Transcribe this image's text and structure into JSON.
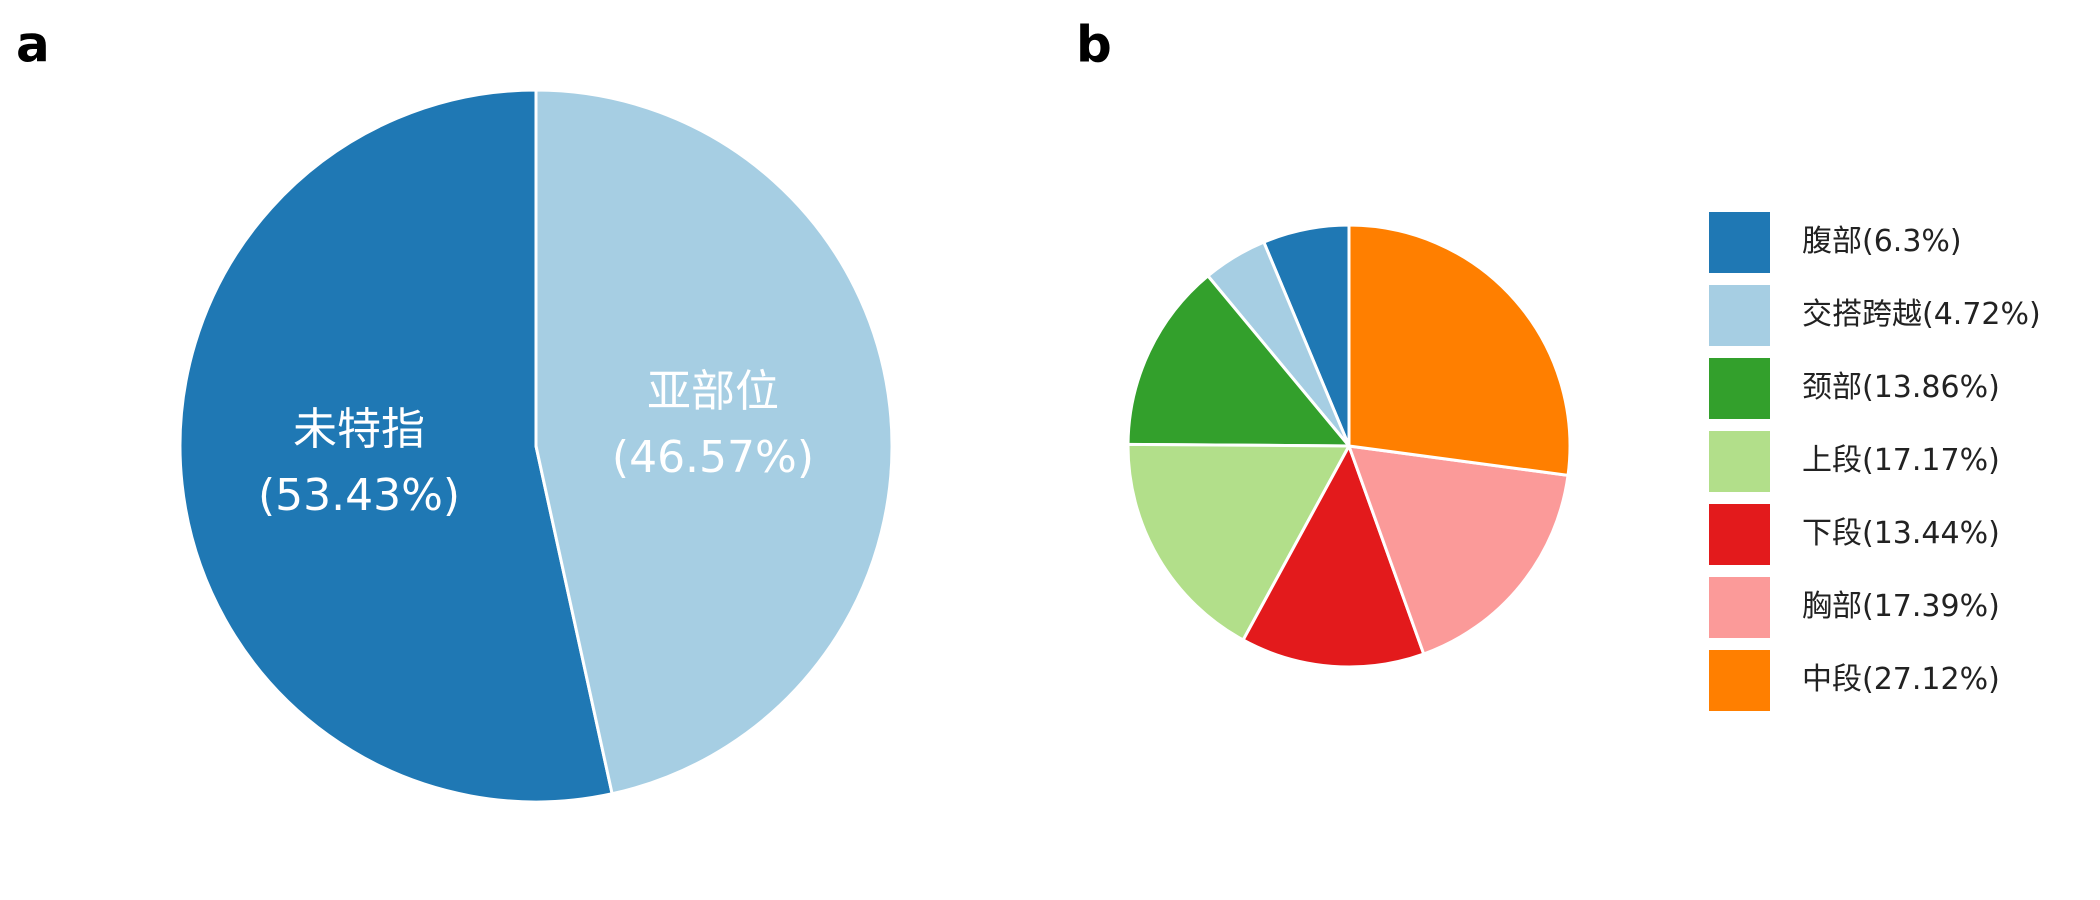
{
  "chart_data": [
    {
      "type": "pie",
      "panel": "a",
      "categories": [
        "未特指",
        "亚部位"
      ],
      "values": [
        53.43,
        46.57
      ],
      "value_labels": [
        "(53.43%)",
        "(46.57%)"
      ],
      "colors": [
        "#1f78b4",
        "#a6cee3"
      ],
      "labels_inside": true,
      "legend": false
    },
    {
      "type": "pie",
      "panel": "b",
      "categories": [
        "腹部(6.3%)",
        "交搭跨越(4.72%)",
        "颈部(13.86%)",
        "上段(17.17%)",
        "下段(13.44%)",
        "胸部(17.39%)",
        "中段(27.12%)"
      ],
      "values": [
        6.3,
        4.72,
        13.86,
        17.17,
        13.44,
        17.39,
        27.12
      ],
      "colors": [
        "#1f78b4",
        "#a6cee3",
        "#33a02c",
        "#b2df8a",
        "#e31a1c",
        "#fb9a99",
        "#ff7f00"
      ],
      "labels_inside": false,
      "legend": true
    }
  ]
}
